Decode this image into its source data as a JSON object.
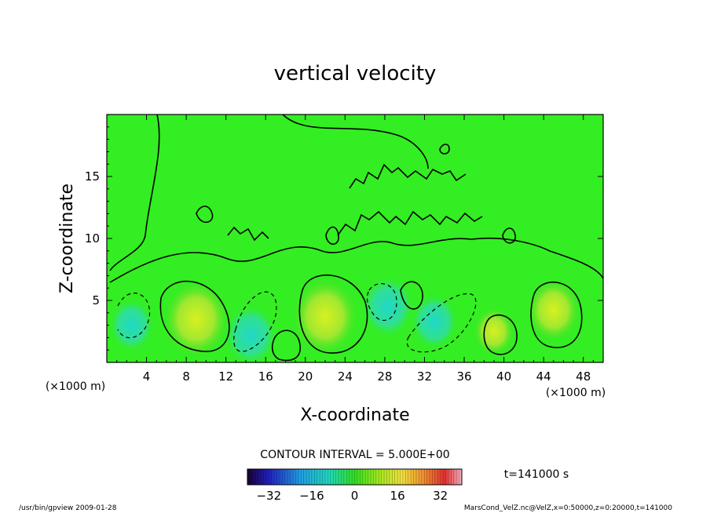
{
  "chart_data": {
    "type": "heatmap",
    "title": "vertical velocity",
    "xlabel": "X-coordinate",
    "ylabel": "Z-coordinate",
    "x_unit_left": "(×1000 m)",
    "x_unit_right": "(×1000 m)",
    "xlim": [
      0,
      50
    ],
    "ylim": [
      0,
      20
    ],
    "x_ticks": [
      4,
      8,
      12,
      16,
      20,
      24,
      28,
      32,
      36,
      40,
      44,
      48
    ],
    "y_ticks": [
      5,
      10,
      15
    ],
    "contour_interval_text": "CONTOUR INTERVAL = 5.000E+00",
    "time_label": "t=141000 s",
    "colorbar": {
      "range": [
        -40,
        40
      ],
      "ticks": [
        -32,
        -16,
        0,
        16,
        32
      ],
      "colormap": "rainbow: purple-blue-cyan-green-yellow-red-pink"
    },
    "field_features": [
      {
        "x": 9,
        "z": 3.5,
        "value": 15,
        "sign": "up"
      },
      {
        "x": 22,
        "z": 3.7,
        "value": 15,
        "sign": "up"
      },
      {
        "x": 45,
        "z": 4.2,
        "value": 10,
        "sign": "up"
      },
      {
        "x": 39,
        "z": 2.5,
        "value": 5,
        "sign": "up"
      },
      {
        "x": 2.5,
        "z": 3.0,
        "value": -7,
        "sign": "down"
      },
      {
        "x": 14.5,
        "z": 2.2,
        "value": -10,
        "sign": "down"
      },
      {
        "x": 28.3,
        "z": 4.5,
        "value": -10,
        "sign": "down"
      },
      {
        "x": 33,
        "z": 3.3,
        "value": -8,
        "sign": "down"
      }
    ]
  },
  "footer": {
    "left": "/usr/bin/gpview   2009-01-28",
    "right": "MarsCond_VelZ.nc@VelZ,x=0:50000,z=0:20000,t=141000"
  },
  "colors": {
    "background_field": "#33ee22",
    "axis": "#000000"
  }
}
